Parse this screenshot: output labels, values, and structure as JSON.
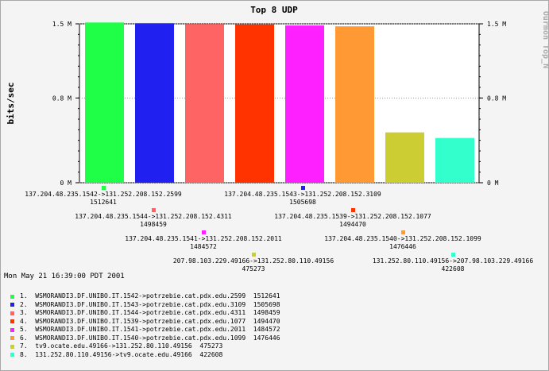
{
  "chart_data": {
    "type": "bar",
    "title": "Top 8 UDP",
    "ylabel": "bits/sec",
    "watermark": "Ourmon Top_N",
    "ylim": [
      0,
      1500000
    ],
    "yticks": [
      {
        "value": 0,
        "label": "0 M"
      },
      {
        "value": 800000,
        "label": "0.8 M"
      },
      {
        "value": 1500000,
        "label": "1.5 M"
      }
    ],
    "series": [
      {
        "rank": "1.",
        "flow": "137.204.48.235.1542->131.252.208.152.2599",
        "value": 1512641,
        "color": "#20ff48",
        "legend_name": "WSMORANDI3.DF.UNIBO.IT.1542->potrzebie.cat.pdx.edu.2599"
      },
      {
        "rank": "2.",
        "flow": "137.204.48.235.1543->131.252.208.152.3109",
        "value": 1505698,
        "color": "#2020f0",
        "legend_name": "WSMORANDI3.DF.UNIBO.IT.1543->potrzebie.cat.pdx.edu.3109"
      },
      {
        "rank": "3.",
        "flow": "137.204.48.235.1544->131.252.208.152.4311",
        "value": 1498459,
        "color": "#ff6464",
        "legend_name": "WSMORANDI3.DF.UNIBO.IT.1544->potrzebie.cat.pdx.edu.4311"
      },
      {
        "rank": "4.",
        "flow": "137.204.48.235.1539->131.252.208.152.1077",
        "value": 1494470,
        "color": "#ff3300",
        "legend_name": "WSMORANDI3.DF.UNIBO.IT.1539->potrzebie.cat.pdx.edu.1077"
      },
      {
        "rank": "5.",
        "flow": "137.204.48.235.1541->131.252.208.152.2011",
        "value": 1484572,
        "color": "#ff20ff",
        "legend_name": "WSMORANDI3.DF.UNIBO.IT.1541->potrzebie.cat.pdx.edu.2011"
      },
      {
        "rank": "6.",
        "flow": "137.204.48.235.1540->131.252.208.152.1099",
        "value": 1476446,
        "color": "#ff9933",
        "legend_name": "WSMORANDI3.DF.UNIBO.IT.1540->potrzebie.cat.pdx.edu.1099"
      },
      {
        "rank": "7.",
        "flow": "207.98.103.229.49166->131.252.80.110.49156",
        "value": 475273,
        "color": "#cccc33",
        "legend_name": "tv9.ocate.edu.49166->131.252.80.110.49156"
      },
      {
        "rank": "8.",
        "flow": "131.252.80.110.49156->207.98.103.229.49166",
        "value": 422608,
        "color": "#33ffcc",
        "legend_name": "131.252.80.110.49156->tv9.ocate.edu.49166"
      }
    ]
  },
  "timestamp": "Mon May 21 16:39:00 PDT 2001"
}
